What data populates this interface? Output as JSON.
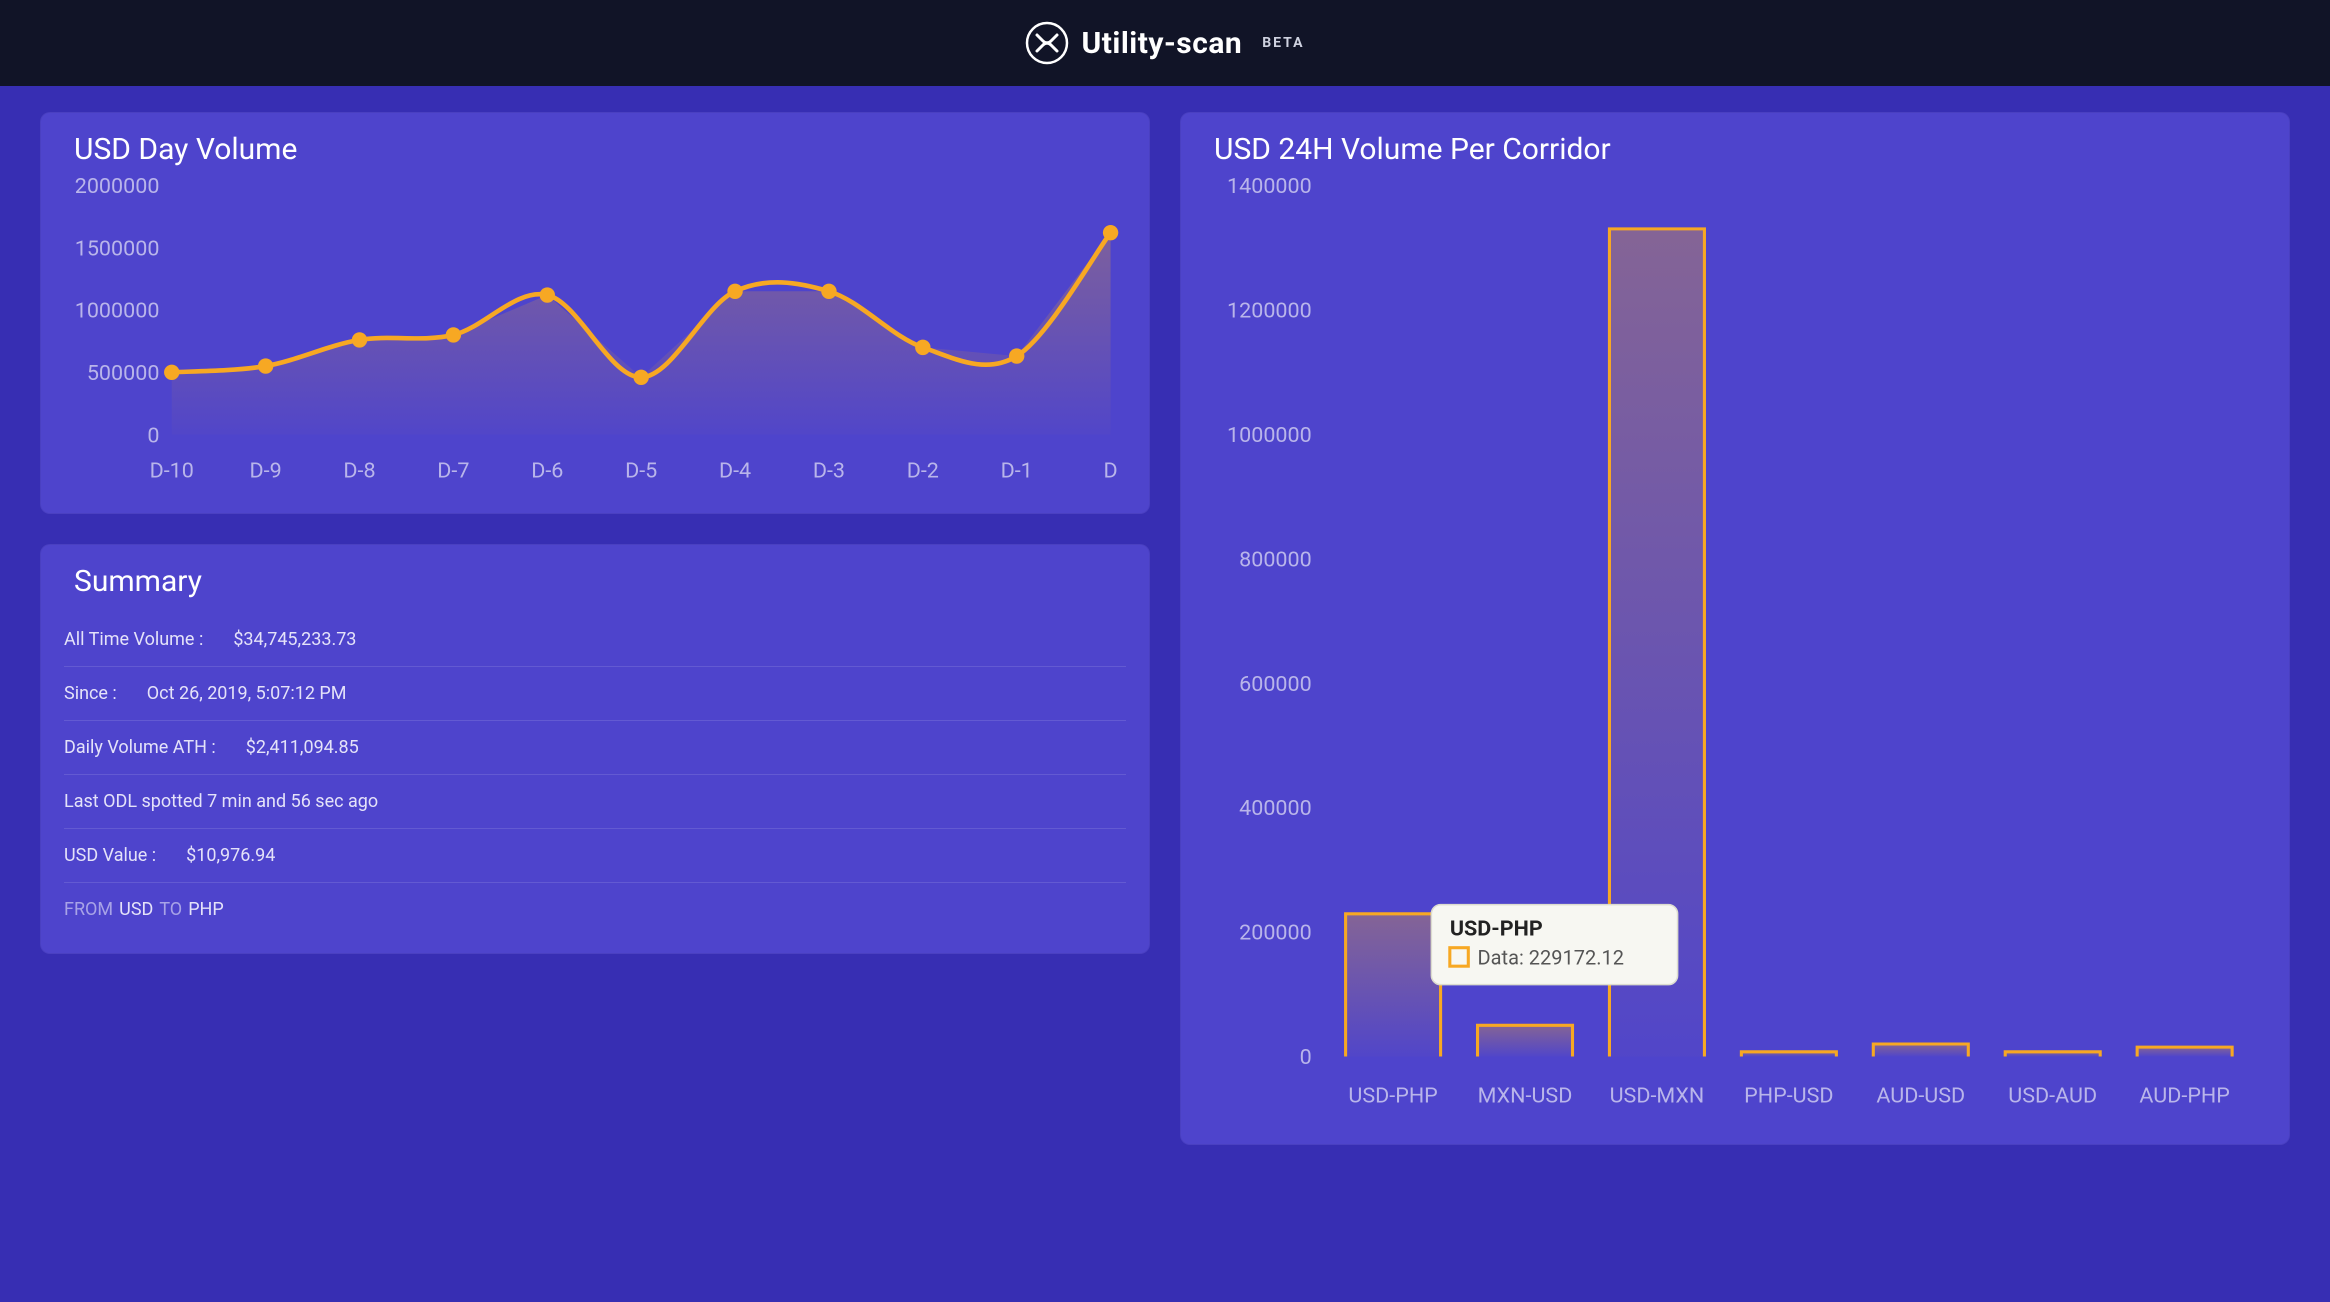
{
  "header": {
    "brand": "Utility-scan",
    "badge": "BETA",
    "logo_stroke": "#ffffff",
    "bg": "#111427"
  },
  "page_bg": "#372eb3",
  "panel_bg": "#4e44cc",
  "accent": "#f7a823",
  "axis_color": "#b9b5ea",
  "grid_color": "#6a61d8",
  "line_chart": {
    "title": "USD Day Volume",
    "type": "line-area",
    "categories": [
      "D-10",
      "D-9",
      "D-8",
      "D-7",
      "D-6",
      "D-5",
      "D-4",
      "D-3",
      "D-2",
      "D-1",
      "D"
    ],
    "values": [
      500000,
      550000,
      760000,
      800000,
      1120000,
      460000,
      1150000,
      1150000,
      700000,
      630000,
      1620000
    ],
    "ylim": [
      0,
      2000000
    ],
    "ytick_step": 500000,
    "yticks": [
      "0",
      "500000",
      "1000000",
      "1500000",
      "2000000"
    ],
    "line_color": "#f7a823",
    "marker_color": "#f7a823",
    "area_fill_top": "rgba(247,168,35,0.28)",
    "area_fill_bottom": "rgba(247,168,35,0.02)",
    "line_width": 3,
    "marker_radius": 5
  },
  "bar_chart": {
    "title": "USD 24H Volume Per Corridor",
    "type": "bar",
    "categories": [
      "USD-PHP",
      "MXN-USD",
      "USD-MXN",
      "PHP-USD",
      "AUD-USD",
      "USD-AUD",
      "AUD-PHP"
    ],
    "values": [
      229172.12,
      50000,
      1330000,
      0,
      20000,
      0,
      15000
    ],
    "ylim": [
      0,
      1400000
    ],
    "ytick_step": 200000,
    "yticks": [
      "0",
      "200000",
      "400000",
      "600000",
      "800000",
      "1000000",
      "1200000",
      "1400000"
    ],
    "bar_stroke": "#f7a823",
    "bar_fill_top": "rgba(247,168,35,0.32)",
    "bar_fill_bottom": "rgba(247,168,35,0.02)",
    "bar_stroke_width": 2,
    "bar_width_ratio": 0.72,
    "tooltip": {
      "category": "USD-PHP",
      "label": "Data:",
      "value": "229172.12",
      "legend_stroke": "#f7a823",
      "bg": "#f7f7f2"
    }
  },
  "summary": {
    "title": "Summary",
    "rows": [
      {
        "label": "All Time Volume :",
        "value": "$34,745,233.73"
      },
      {
        "label": "Since :",
        "value": "Oct 26, 2019, 5:07:12 PM"
      },
      {
        "label": "Daily Volume ATH :",
        "value": "$2,411,094.85"
      },
      {
        "full": "Last ODL spotted 7 min and 56 sec ago"
      },
      {
        "label": "USD Value :",
        "value": "$10,976.94"
      },
      {
        "from_prefix": "FROM",
        "from": "USD",
        "to_prefix": "TO",
        "to": "PHP"
      }
    ]
  }
}
